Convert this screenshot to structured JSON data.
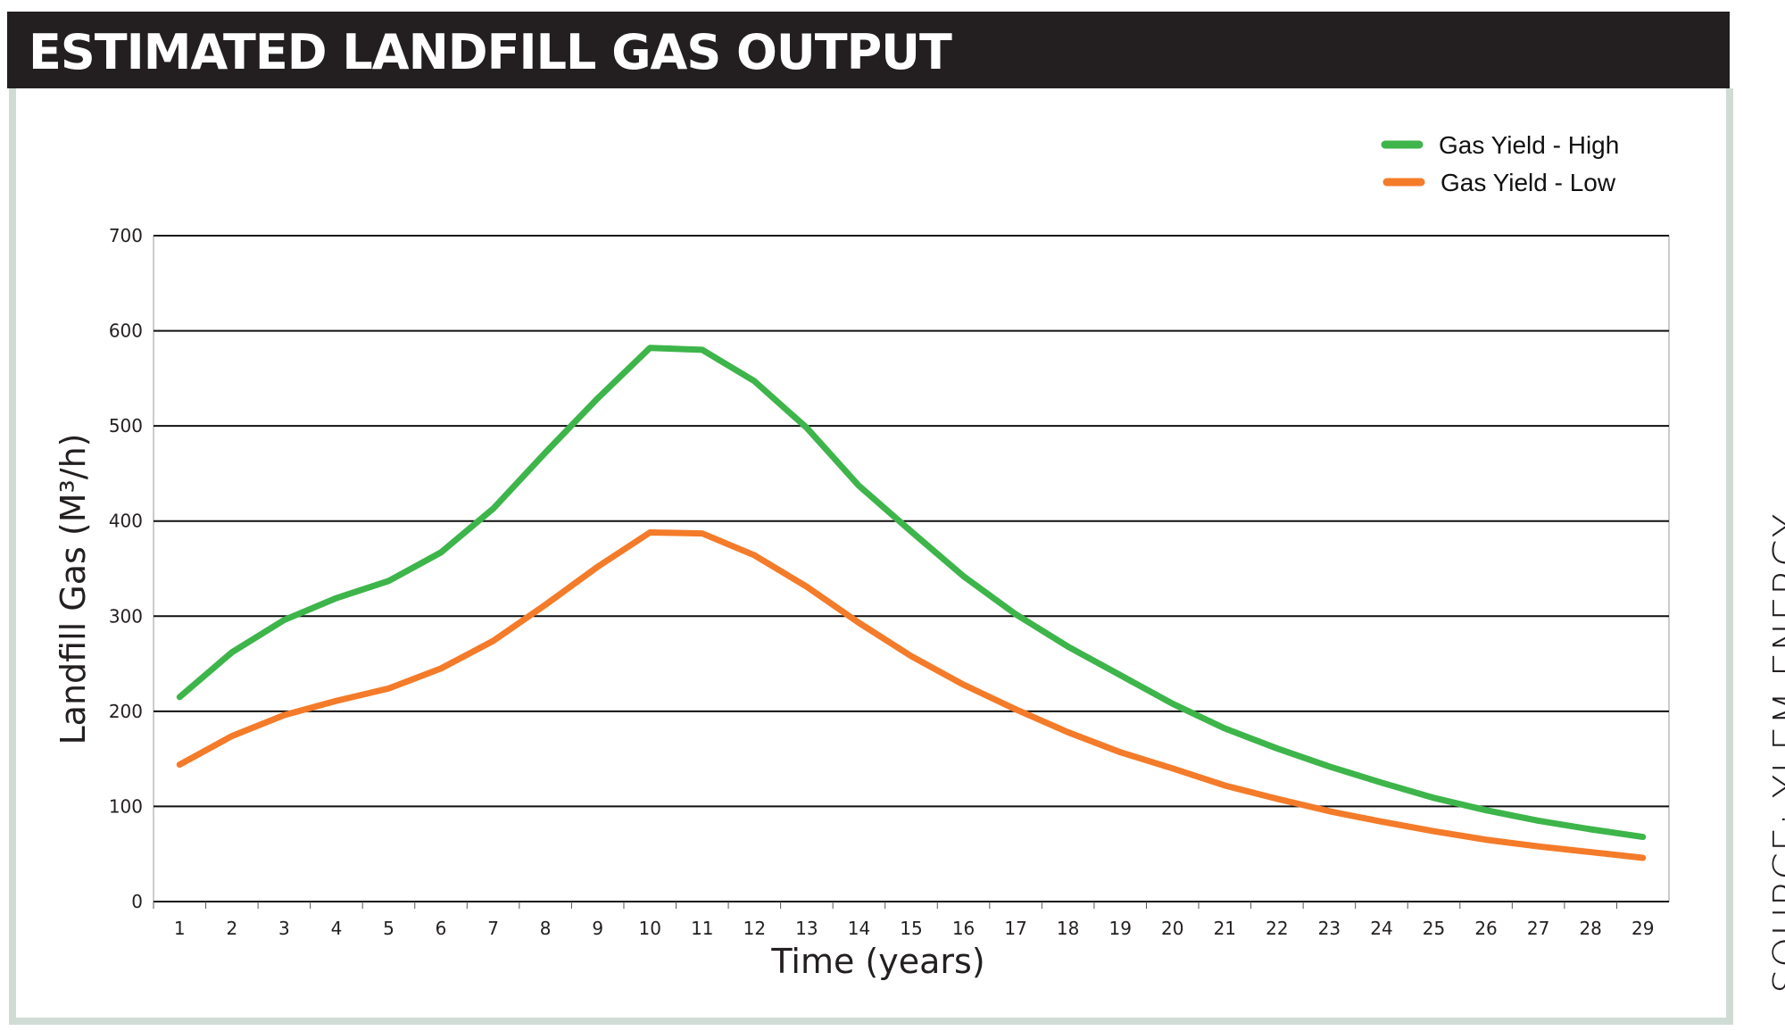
{
  "title": "ESTIMATED LANDFILL GAS OUTPUT",
  "source": "SOURCE: YLEM ENERGY",
  "chart_data": {
    "type": "line",
    "title": "ESTIMATED LANDFILL GAS OUTPUT",
    "xlabel": "Time (years)",
    "ylabel": "Landfill Gas (M³/h)",
    "x": [
      1,
      2,
      3,
      4,
      5,
      6,
      7,
      8,
      9,
      10,
      11,
      12,
      13,
      14,
      15,
      16,
      17,
      18,
      19,
      20,
      21,
      22,
      23,
      24,
      25,
      26,
      27,
      28,
      29
    ],
    "ylim": [
      0,
      700
    ],
    "yticks": [
      0,
      100,
      200,
      300,
      400,
      500,
      600,
      700
    ],
    "grid": true,
    "legend_position": "top-right",
    "series": [
      {
        "name": "Gas Yield - High",
        "color": "#3db54a",
        "values": [
          215,
          262,
          296,
          319,
          337,
          367,
          413,
          472,
          529,
          582,
          580,
          547,
          498,
          437,
          389,
          342,
          302,
          268,
          238,
          208,
          182,
          161,
          142,
          125,
          109,
          96,
          85,
          76,
          68
        ]
      },
      {
        "name": "Gas Yield - Low",
        "color": "#f47b29",
        "values": [
          144,
          174,
          196,
          211,
          224,
          245,
          274,
          312,
          352,
          388,
          387,
          364,
          331,
          293,
          258,
          228,
          202,
          178,
          157,
          140,
          122,
          108,
          95,
          84,
          74,
          65,
          58,
          52,
          46
        ]
      }
    ]
  }
}
